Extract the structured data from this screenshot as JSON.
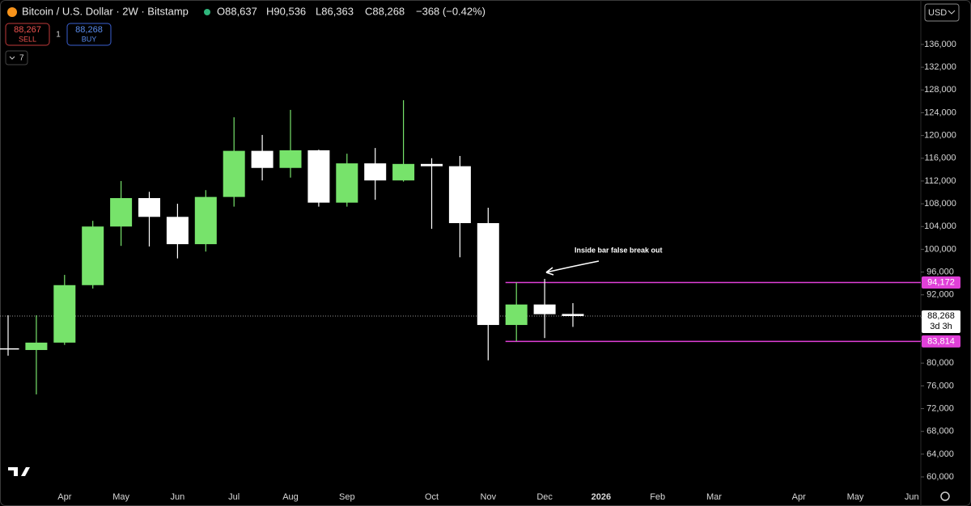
{
  "header": {
    "symbol": "Bitcoin / U.S. Dollar · 2W · Bitstamp",
    "ohlc": [
      "O88,637",
      "H90,536",
      "L86,363",
      "C88,268"
    ],
    "change": "−368 (−0.42%)",
    "currency": "USD"
  },
  "trade": {
    "sell_price": "88,267",
    "sell": "SELL",
    "quantity": 1,
    "buy_price": "88,268",
    "buy": "BUY"
  },
  "indicators": 7,
  "chart_data": {
    "type": "candlestick",
    "annotation": "Inside bar false break out",
    "categories": [
      null,
      null,
      "Apr",
      null,
      "May",
      null,
      "Jun",
      null,
      "Jul",
      null,
      "Aug",
      null,
      "Sep",
      null,
      null,
      "Oct",
      null,
      "Nov",
      null,
      "Dec",
      null,
      "2026",
      null,
      "Feb",
      null,
      "Mar",
      null,
      null,
      "Apr",
      null,
      "May",
      null,
      "Jun"
    ],
    "up_color": "#77e36b",
    "down_color": "#ffffff",
    "open": [
      82600,
      82300,
      83600,
      93700,
      104000,
      109000,
      105700,
      100900,
      109200,
      117300,
      114300,
      117400,
      108200,
      115100,
      112100,
      115000,
      114600,
      104600,
      86700,
      90300,
      88637,
      null,
      null,
      null,
      null,
      null,
      null,
      null,
      null,
      null,
      null,
      null,
      null
    ],
    "high": [
      88400,
      88400,
      95500,
      105000,
      112000,
      110100,
      108000,
      110400,
      123200,
      120100,
      124500,
      117500,
      116800,
      117800,
      126200,
      116000,
      116400,
      107300,
      94172,
      94800,
      90536,
      null,
      null,
      null,
      null,
      null,
      null,
      null,
      null,
      null,
      null,
      null,
      null
    ],
    "low": [
      81300,
      74500,
      83200,
      93100,
      100600,
      100500,
      98400,
      99600,
      107500,
      112100,
      112600,
      107500,
      107500,
      108700,
      111900,
      103600,
      98600,
      80500,
      83814,
      84400,
      86363,
      null,
      null,
      null,
      null,
      null,
      null,
      null,
      null,
      null,
      null,
      null,
      null
    ],
    "close": [
      82400,
      83600,
      93700,
      104000,
      109000,
      105700,
      100900,
      109200,
      117300,
      114300,
      117400,
      108200,
      115100,
      112100,
      115000,
      114600,
      104600,
      86700,
      90300,
      88600,
      88268,
      null,
      null,
      null,
      null,
      null,
      null,
      null,
      null,
      null,
      null,
      null,
      null
    ],
    "ylim": [
      58580,
      143810
    ],
    "yticks": [
      {
        "value": 60000,
        "label": "60,000"
      },
      {
        "value": 64000,
        "label": "64,000"
      },
      {
        "value": 68000,
        "label": "68,000"
      },
      {
        "value": 72000,
        "label": "72,000"
      },
      {
        "value": 76000,
        "label": "76,000"
      },
      {
        "value": 80000,
        "label": "80,000"
      },
      {
        "value": 84000,
        "label": "84,000"
      },
      {
        "value": 88000,
        "label": "88,000"
      },
      {
        "value": 92000,
        "label": "92,000"
      },
      {
        "value": 96000,
        "label": "96,000"
      },
      {
        "value": 100000,
        "label": "100,000"
      },
      {
        "value": 104000,
        "label": "104,000"
      },
      {
        "value": 108000,
        "label": "108,000"
      },
      {
        "value": 112000,
        "label": "112,000"
      },
      {
        "value": 116000,
        "label": "116,000"
      },
      {
        "value": 120000,
        "label": "120,000"
      },
      {
        "value": 124000,
        "label": "124,000"
      },
      {
        "value": 128000,
        "label": "128,000"
      },
      {
        "value": 132000,
        "label": "132,000"
      },
      {
        "value": 136000,
        "label": "136,000"
      }
    ],
    "price_lines": [
      {
        "value": 94172,
        "label": "94,172",
        "color": "#e040d8"
      },
      {
        "value": 83814,
        "label": "83,814",
        "color": "#e040d8"
      }
    ],
    "last_price": {
      "value": 88268,
      "label": "88,268",
      "countdown": "3d 3h"
    }
  }
}
